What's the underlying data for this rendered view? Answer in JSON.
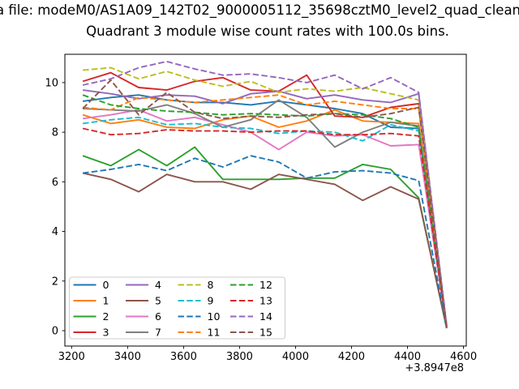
{
  "suptitle": "a file: modeM0/AS1A09_142T02_9000005112_35698cztM0_level2_quad_clean",
  "chart_data": {
    "type": "line",
    "title": "Quadrant 3 module wise count rates with 100.0s bins.",
    "xlabel": "",
    "ylabel": "",
    "x_offset_text": "+3.8947e8",
    "xlim": [
      3176,
      4610
    ],
    "ylim": [
      -0.62,
      11.14
    ],
    "x_ticks": [
      3200,
      3400,
      3600,
      3800,
      4000,
      4200,
      4400,
      4600
    ],
    "y_ticks": [
      0,
      2,
      4,
      6,
      8,
      10
    ],
    "grid": false,
    "legend_position": "lower left",
    "legend_columns": 4,
    "x": [
      3240,
      3340,
      3440,
      3540,
      3640,
      3740,
      3840,
      3940,
      4040,
      4140,
      4240,
      4340,
      4440,
      4540
    ],
    "series": [
      {
        "name": "0",
        "color": "#1f77b4",
        "linestyle": "solid",
        "values": [
          9.25,
          9.4,
          9.5,
          9.3,
          9.2,
          9.2,
          9.1,
          9.25,
          9.1,
          8.95,
          8.75,
          8.2,
          8.15,
          0.15
        ]
      },
      {
        "name": "1",
        "color": "#ff7f0e",
        "linestyle": "solid",
        "values": [
          8.7,
          8.35,
          8.5,
          8.2,
          8.15,
          8.5,
          8.65,
          8.2,
          8.45,
          8.9,
          8.45,
          8.4,
          8.35,
          0.15
        ]
      },
      {
        "name": "2",
        "color": "#2ca02c",
        "linestyle": "solid",
        "values": [
          7.05,
          6.65,
          7.3,
          6.65,
          7.4,
          6.1,
          6.1,
          6.1,
          6.15,
          6.15,
          6.7,
          6.5,
          5.35,
          0.1
        ]
      },
      {
        "name": "3",
        "color": "#d62728",
        "linestyle": "solid",
        "values": [
          10.05,
          10.4,
          9.8,
          9.7,
          10.05,
          10.2,
          9.7,
          9.65,
          10.3,
          8.65,
          8.6,
          9.0,
          9.15,
          0.15
        ]
      },
      {
        "name": "4",
        "color": "#9467bd",
        "linestyle": "solid",
        "values": [
          9.7,
          9.55,
          9.35,
          9.5,
          9.45,
          9.15,
          9.55,
          9.65,
          9.35,
          9.5,
          9.3,
          9.2,
          9.55,
          0.2
        ]
      },
      {
        "name": "5",
        "color": "#8c564b",
        "linestyle": "solid",
        "values": [
          6.35,
          6.1,
          5.6,
          6.3,
          6.0,
          6.0,
          5.7,
          6.3,
          6.1,
          5.9,
          5.25,
          5.8,
          5.3,
          0.1
        ]
      },
      {
        "name": "6",
        "color": "#e377c2",
        "linestyle": "solid",
        "values": [
          8.55,
          8.7,
          8.9,
          8.45,
          8.6,
          8.3,
          8.0,
          7.3,
          8.0,
          7.85,
          7.9,
          7.45,
          7.5,
          0.15
        ]
      },
      {
        "name": "7",
        "color": "#7f7f7f",
        "linestyle": "solid",
        "values": [
          8.95,
          8.9,
          8.85,
          9.1,
          8.75,
          8.2,
          8.5,
          9.3,
          8.6,
          7.4,
          8.0,
          8.4,
          8.25,
          0.15
        ]
      },
      {
        "name": "8",
        "color": "#bcbd22",
        "linestyle": "dashed",
        "values": [
          10.5,
          10.6,
          10.15,
          10.45,
          10.1,
          9.85,
          10.05,
          9.6,
          9.75,
          9.65,
          9.8,
          9.55,
          9.3,
          0.2
        ]
      },
      {
        "name": "9",
        "color": "#17becf",
        "linestyle": "dashed",
        "values": [
          8.35,
          8.5,
          8.6,
          8.3,
          8.35,
          8.2,
          8.15,
          7.95,
          8.05,
          8.0,
          7.65,
          8.3,
          8.05,
          0.15
        ]
      },
      {
        "name": "10",
        "color": "#1f77b4",
        "linestyle": "dashed",
        "values": [
          6.35,
          6.5,
          6.7,
          6.45,
          6.95,
          6.6,
          7.05,
          6.8,
          6.15,
          6.4,
          6.45,
          6.35,
          6.05,
          0.1
        ]
      },
      {
        "name": "11",
        "color": "#ff7f0e",
        "linestyle": "dashed",
        "values": [
          9.0,
          8.9,
          9.4,
          9.3,
          9.2,
          9.3,
          9.4,
          9.5,
          9.1,
          9.25,
          9.1,
          8.95,
          8.95,
          0.15
        ]
      },
      {
        "name": "12",
        "color": "#2ca02c",
        "linestyle": "dashed",
        "values": [
          9.5,
          9.1,
          8.95,
          8.85,
          8.8,
          8.7,
          8.75,
          8.7,
          8.65,
          8.75,
          8.7,
          8.55,
          8.2,
          0.15
        ]
      },
      {
        "name": "13",
        "color": "#d62728",
        "linestyle": "dashed",
        "values": [
          8.15,
          7.9,
          7.95,
          8.1,
          8.05,
          8.05,
          8.0,
          8.05,
          8.05,
          7.9,
          7.9,
          7.95,
          7.85,
          0.15
        ]
      },
      {
        "name": "14",
        "color": "#9467bd",
        "linestyle": "dashed",
        "values": [
          9.9,
          10.15,
          10.6,
          10.85,
          10.55,
          10.3,
          10.35,
          10.2,
          10.0,
          10.3,
          9.75,
          10.2,
          9.6,
          0.2
        ]
      },
      {
        "name": "15",
        "color": "#8c564b",
        "linestyle": "dashed",
        "values": [
          8.95,
          10.1,
          8.7,
          9.6,
          8.8,
          8.55,
          8.65,
          8.6,
          8.7,
          8.75,
          8.6,
          8.75,
          9.0,
          0.15
        ]
      }
    ]
  }
}
